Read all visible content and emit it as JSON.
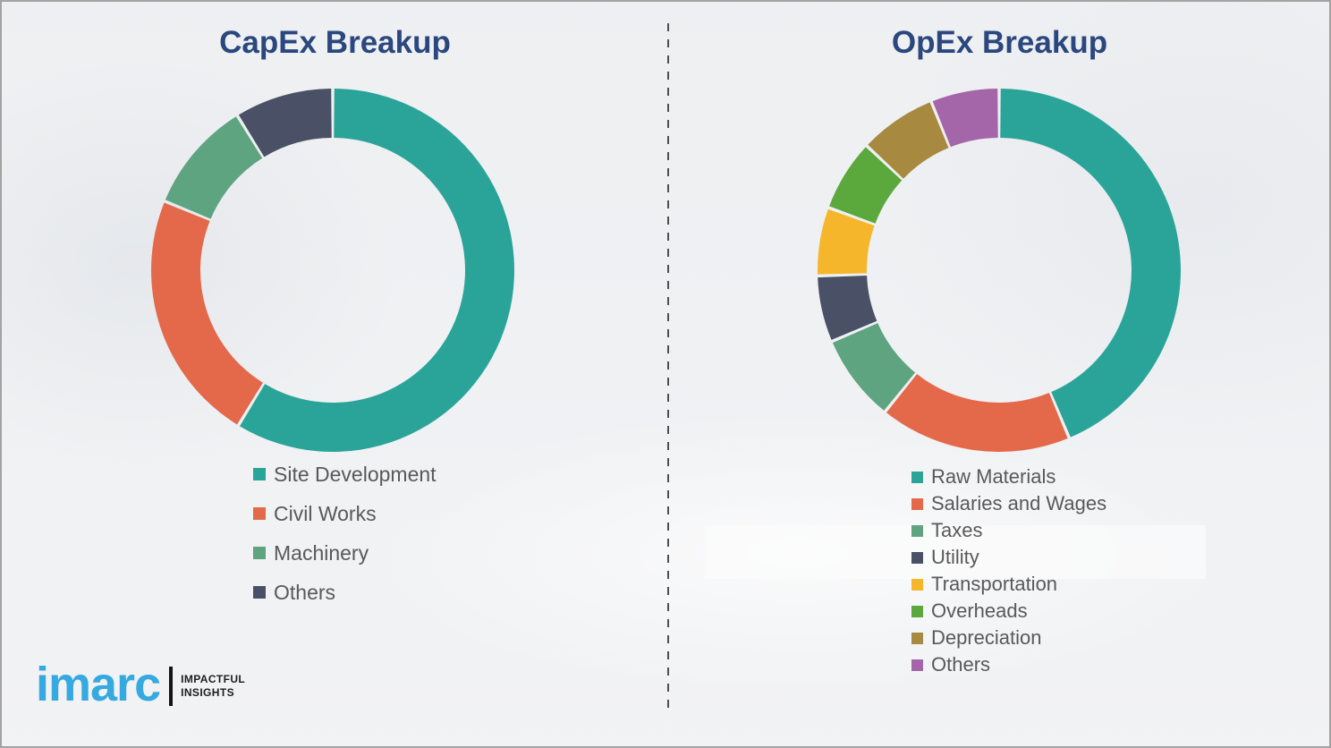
{
  "page": {
    "background_color": "#F1F2F4",
    "border_color": "#A3A3A3",
    "divider_color": "#4F4F4F",
    "title_color": "#2A477E",
    "legend_text_color": "#595959"
  },
  "chart_data": [
    {
      "type": "donut",
      "title": "CapEx Breakup",
      "categories": [
        "Site Development",
        "Civil Works",
        "Machinery",
        "Others"
      ],
      "values": [
        58.7,
        22.5,
        10.0,
        8.8
      ],
      "colors": [
        "#2AA499",
        "#E4694B",
        "#5EA480",
        "#4A5066"
      ],
      "start_angle": 0,
      "direction": "clockwise",
      "inner_radius_ratio": 0.73,
      "data_labels": false,
      "legend_position": "below-left"
    },
    {
      "type": "donut",
      "title": "OpEx Breakup",
      "categories": [
        "Raw Materials",
        "Salaries and Wages",
        "Taxes",
        "Utility",
        "Transportation",
        "Overheads",
        "Depreciation",
        "Others"
      ],
      "values": [
        43.7,
        17.1,
        7.8,
        5.9,
        6.1,
        6.4,
        6.9,
        6.1
      ],
      "colors": [
        "#2AA499",
        "#E4694B",
        "#5EA480",
        "#4A5066",
        "#F5B62C",
        "#5BA83C",
        "#A78A3F",
        "#A466A8"
      ],
      "start_angle": 0,
      "direction": "clockwise",
      "inner_radius_ratio": 0.73,
      "data_labels": false,
      "legend_position": "below-left"
    }
  ],
  "logo": {
    "brand": "imarc",
    "brand_color": "#36A9E1",
    "tagline_line1": "IMPACTFUL",
    "tagline_line2": "INSIGHTS",
    "tagline_color": "#1D1D1D"
  }
}
